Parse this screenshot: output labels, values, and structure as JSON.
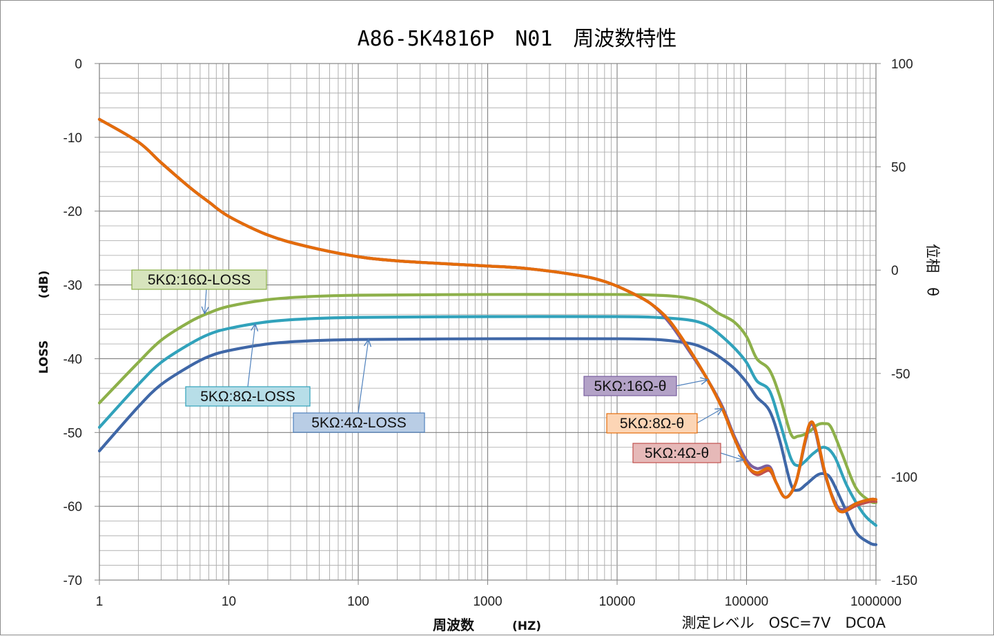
{
  "chart_data": {
    "type": "line",
    "title": "A86-5K4816P　N01　周波数特性",
    "xlabel": "周波数",
    "xlabel_unit": "(HZ)",
    "ylabel": "LOSS",
    "ylabel_unit": "(dB)",
    "y2label": "位相　θ",
    "condition_text": "測定レベル　OSC=7V　DC0A",
    "xscale": "log",
    "xlim": [
      1,
      1000000
    ],
    "ylim": [
      -70,
      0
    ],
    "y2lim": [
      -150,
      100
    ],
    "grid": true,
    "xticks": [
      "1",
      "10",
      "100",
      "1000",
      "10000",
      "100000",
      "1000000"
    ],
    "yticks": [
      "0",
      "-10",
      "-20",
      "-30",
      "-40",
      "-50",
      "-60",
      "-70"
    ],
    "y2ticks": [
      "100",
      "50",
      "0",
      "-50",
      "-100",
      "-150"
    ],
    "series": [
      {
        "name": "5KΩ:16Ω-LOSS",
        "axis": "left",
        "color": "#8db04a",
        "label_bg": "#d7e4bd",
        "label_border": "#8db04a",
        "points": [
          [
            1,
            -46
          ],
          [
            2,
            -40.5
          ],
          [
            3,
            -37.5
          ],
          [
            5,
            -35
          ],
          [
            7,
            -33.8
          ],
          [
            10,
            -32.9
          ],
          [
            20,
            -32
          ],
          [
            40,
            -31.6
          ],
          [
            100,
            -31.4
          ],
          [
            1000,
            -31.3
          ],
          [
            10000,
            -31.3
          ],
          [
            20000,
            -31.4
          ],
          [
            30000,
            -31.6
          ],
          [
            40000,
            -32
          ],
          [
            50000,
            -32.8
          ],
          [
            60000,
            -33.8
          ],
          [
            80000,
            -35
          ],
          [
            100000,
            -37
          ],
          [
            120000,
            -40
          ],
          [
            150000,
            -41.5
          ],
          [
            180000,
            -45
          ],
          [
            220000,
            -50.2
          ],
          [
            250000,
            -50.5
          ],
          [
            300000,
            -50
          ],
          [
            350000,
            -49
          ],
          [
            400000,
            -48.8
          ],
          [
            450000,
            -49.3
          ],
          [
            550000,
            -53
          ],
          [
            700000,
            -57.5
          ],
          [
            900000,
            -59.3
          ],
          [
            1000000,
            -59.5
          ]
        ]
      },
      {
        "name": "5KΩ:8Ω-LOSS",
        "axis": "left",
        "color": "#31a2bb",
        "label_bg": "#b7dee8",
        "label_border": "#31a2bb",
        "points": [
          [
            1,
            -49.3
          ],
          [
            2,
            -43.5
          ],
          [
            3,
            -40.5
          ],
          [
            5,
            -38
          ],
          [
            7,
            -36.7
          ],
          [
            10,
            -35.9
          ],
          [
            20,
            -35
          ],
          [
            40,
            -34.6
          ],
          [
            100,
            -34.4
          ],
          [
            1000,
            -34.3
          ],
          [
            10000,
            -34.3
          ],
          [
            20000,
            -34.4
          ],
          [
            30000,
            -34.6
          ],
          [
            40000,
            -34.9
          ],
          [
            50000,
            -35.5
          ],
          [
            60000,
            -36.5
          ],
          [
            80000,
            -38.5
          ],
          [
            100000,
            -40.5
          ],
          [
            120000,
            -43
          ],
          [
            150000,
            -44.3
          ],
          [
            180000,
            -48.5
          ],
          [
            220000,
            -53.5
          ],
          [
            250000,
            -54.5
          ],
          [
            280000,
            -54
          ],
          [
            330000,
            -52.8
          ],
          [
            400000,
            -52
          ],
          [
            480000,
            -53.3
          ],
          [
            600000,
            -57.3
          ],
          [
            800000,
            -61
          ],
          [
            1000000,
            -62.6
          ]
        ]
      },
      {
        "name": "5KΩ:4Ω-LOSS",
        "axis": "left",
        "color": "#3f67a7",
        "label_bg": "#b9cde5",
        "label_border": "#4f81bd",
        "points": [
          [
            1,
            -52.5
          ],
          [
            2,
            -46.5
          ],
          [
            3,
            -43.5
          ],
          [
            5,
            -41
          ],
          [
            7,
            -39.7
          ],
          [
            10,
            -38.9
          ],
          [
            20,
            -38
          ],
          [
            40,
            -37.6
          ],
          [
            100,
            -37.4
          ],
          [
            1000,
            -37.3
          ],
          [
            10000,
            -37.3
          ],
          [
            20000,
            -37.4
          ],
          [
            30000,
            -37.7
          ],
          [
            40000,
            -38.1
          ],
          [
            50000,
            -38.8
          ],
          [
            60000,
            -39.6
          ],
          [
            80000,
            -41.3
          ],
          [
            100000,
            -43.2
          ],
          [
            120000,
            -45.2
          ],
          [
            150000,
            -47
          ],
          [
            180000,
            -51
          ],
          [
            220000,
            -57
          ],
          [
            250000,
            -57.8
          ],
          [
            290000,
            -57
          ],
          [
            350000,
            -55.8
          ],
          [
            400000,
            -55.6
          ],
          [
            450000,
            -56.3
          ],
          [
            550000,
            -59.5
          ],
          [
            700000,
            -63.5
          ],
          [
            900000,
            -65
          ],
          [
            1000000,
            -65.2
          ]
        ]
      },
      {
        "name": "5KΩ:16Ω-θ",
        "axis": "right",
        "color": "#7a60a0",
        "label_bg": "#b3a2c7",
        "label_border": "#7a60a0",
        "points": [
          [
            1,
            73
          ],
          [
            2,
            62
          ],
          [
            3,
            52
          ],
          [
            5,
            40
          ],
          [
            7,
            33
          ],
          [
            10,
            26
          ],
          [
            20,
            17
          ],
          [
            40,
            11.5
          ],
          [
            100,
            6.5
          ],
          [
            200,
            4.5
          ],
          [
            500,
            3
          ],
          [
            1000,
            2
          ],
          [
            2000,
            0.8
          ],
          [
            5000,
            -2.5
          ],
          [
            8000,
            -5.5
          ],
          [
            12000,
            -10
          ],
          [
            18000,
            -16
          ],
          [
            25000,
            -25
          ],
          [
            35000,
            -38
          ],
          [
            50000,
            -53
          ],
          [
            65000,
            -66
          ],
          [
            80000,
            -80
          ],
          [
            100000,
            -92
          ],
          [
            120000,
            -96
          ],
          [
            150000,
            -95
          ],
          [
            170000,
            -103
          ],
          [
            200000,
            -110
          ],
          [
            240000,
            -103
          ],
          [
            280000,
            -85
          ],
          [
            310000,
            -75
          ],
          [
            340000,
            -78
          ],
          [
            400000,
            -98
          ],
          [
            480000,
            -112
          ],
          [
            550000,
            -116
          ],
          [
            700000,
            -113
          ],
          [
            900000,
            -111
          ],
          [
            1000000,
            -111
          ]
        ]
      },
      {
        "name": "5KΩ:8Ω-θ",
        "axis": "right",
        "color": "#e46c0a",
        "label_bg": "#fcd5b5",
        "label_border": "#e46c0a",
        "points": [
          [
            1,
            73
          ],
          [
            2,
            62
          ],
          [
            3,
            52
          ],
          [
            5,
            40
          ],
          [
            7,
            33
          ],
          [
            10,
            26
          ],
          [
            20,
            17
          ],
          [
            40,
            11.5
          ],
          [
            100,
            6.5
          ],
          [
            200,
            4.5
          ],
          [
            500,
            3
          ],
          [
            1000,
            2
          ],
          [
            2000,
            0.8
          ],
          [
            5000,
            -2.5
          ],
          [
            8000,
            -5.5
          ],
          [
            12000,
            -10
          ],
          [
            18000,
            -16
          ],
          [
            25000,
            -24
          ],
          [
            35000,
            -37
          ],
          [
            50000,
            -53
          ],
          [
            65000,
            -67
          ],
          [
            80000,
            -81
          ],
          [
            100000,
            -94
          ],
          [
            120000,
            -98
          ],
          [
            150000,
            -96
          ],
          [
            170000,
            -103
          ],
          [
            200000,
            -110
          ],
          [
            240000,
            -103
          ],
          [
            280000,
            -84
          ],
          [
            310000,
            -74
          ],
          [
            340000,
            -77
          ],
          [
            400000,
            -97
          ],
          [
            480000,
            -113
          ],
          [
            550000,
            -117
          ],
          [
            700000,
            -113
          ],
          [
            900000,
            -111
          ],
          [
            1000000,
            -111
          ]
        ]
      },
      {
        "name": "5KΩ:4Ω-θ",
        "axis": "right",
        "color": "#c0504d",
        "label_bg": "#e6b9b8",
        "label_border": "#c0504d",
        "points": [
          [
            1,
            73
          ],
          [
            2,
            62
          ],
          [
            3,
            52
          ],
          [
            5,
            40
          ],
          [
            7,
            33
          ],
          [
            10,
            26
          ],
          [
            20,
            17
          ],
          [
            40,
            11.5
          ],
          [
            100,
            6.5
          ],
          [
            200,
            4.5
          ],
          [
            500,
            3
          ],
          [
            1000,
            2
          ],
          [
            2000,
            0.8
          ],
          [
            5000,
            -2.5
          ],
          [
            8000,
            -5.5
          ],
          [
            12000,
            -10
          ],
          [
            18000,
            -16
          ],
          [
            25000,
            -24
          ],
          [
            35000,
            -37
          ],
          [
            50000,
            -53
          ],
          [
            65000,
            -67
          ],
          [
            80000,
            -81
          ],
          [
            100000,
            -94
          ],
          [
            120000,
            -99
          ],
          [
            150000,
            -97
          ],
          [
            170000,
            -103
          ],
          [
            200000,
            -110
          ],
          [
            240000,
            -103
          ],
          [
            280000,
            -84
          ],
          [
            310000,
            -74
          ],
          [
            340000,
            -77
          ],
          [
            400000,
            -97
          ],
          [
            480000,
            -113
          ],
          [
            550000,
            -117
          ],
          [
            700000,
            -114
          ],
          [
            900000,
            -112
          ],
          [
            1000000,
            -112
          ]
        ]
      }
    ],
    "annotations": [
      {
        "series": 0,
        "text": "5KΩ:16Ω-LOSS",
        "arrow_to": [
          6.5,
          -33.9
        ]
      },
      {
        "series": 1,
        "text": "5KΩ:8Ω-LOSS",
        "arrow_to": [
          16,
          -35.3
        ]
      },
      {
        "series": 2,
        "text": "5KΩ:4Ω-LOSS",
        "arrow_to": [
          120,
          -37.4
        ]
      },
      {
        "series": 3,
        "text": "5KΩ:16Ω-θ",
        "arrow_to": [
          50000,
          -53
        ]
      },
      {
        "series": 4,
        "text": "5KΩ:8Ω-θ",
        "arrow_to": [
          65000,
          -67
        ]
      },
      {
        "series": 5,
        "text": "5KΩ:4Ω-θ",
        "arrow_to": [
          95000,
          -92
        ]
      }
    ]
  }
}
